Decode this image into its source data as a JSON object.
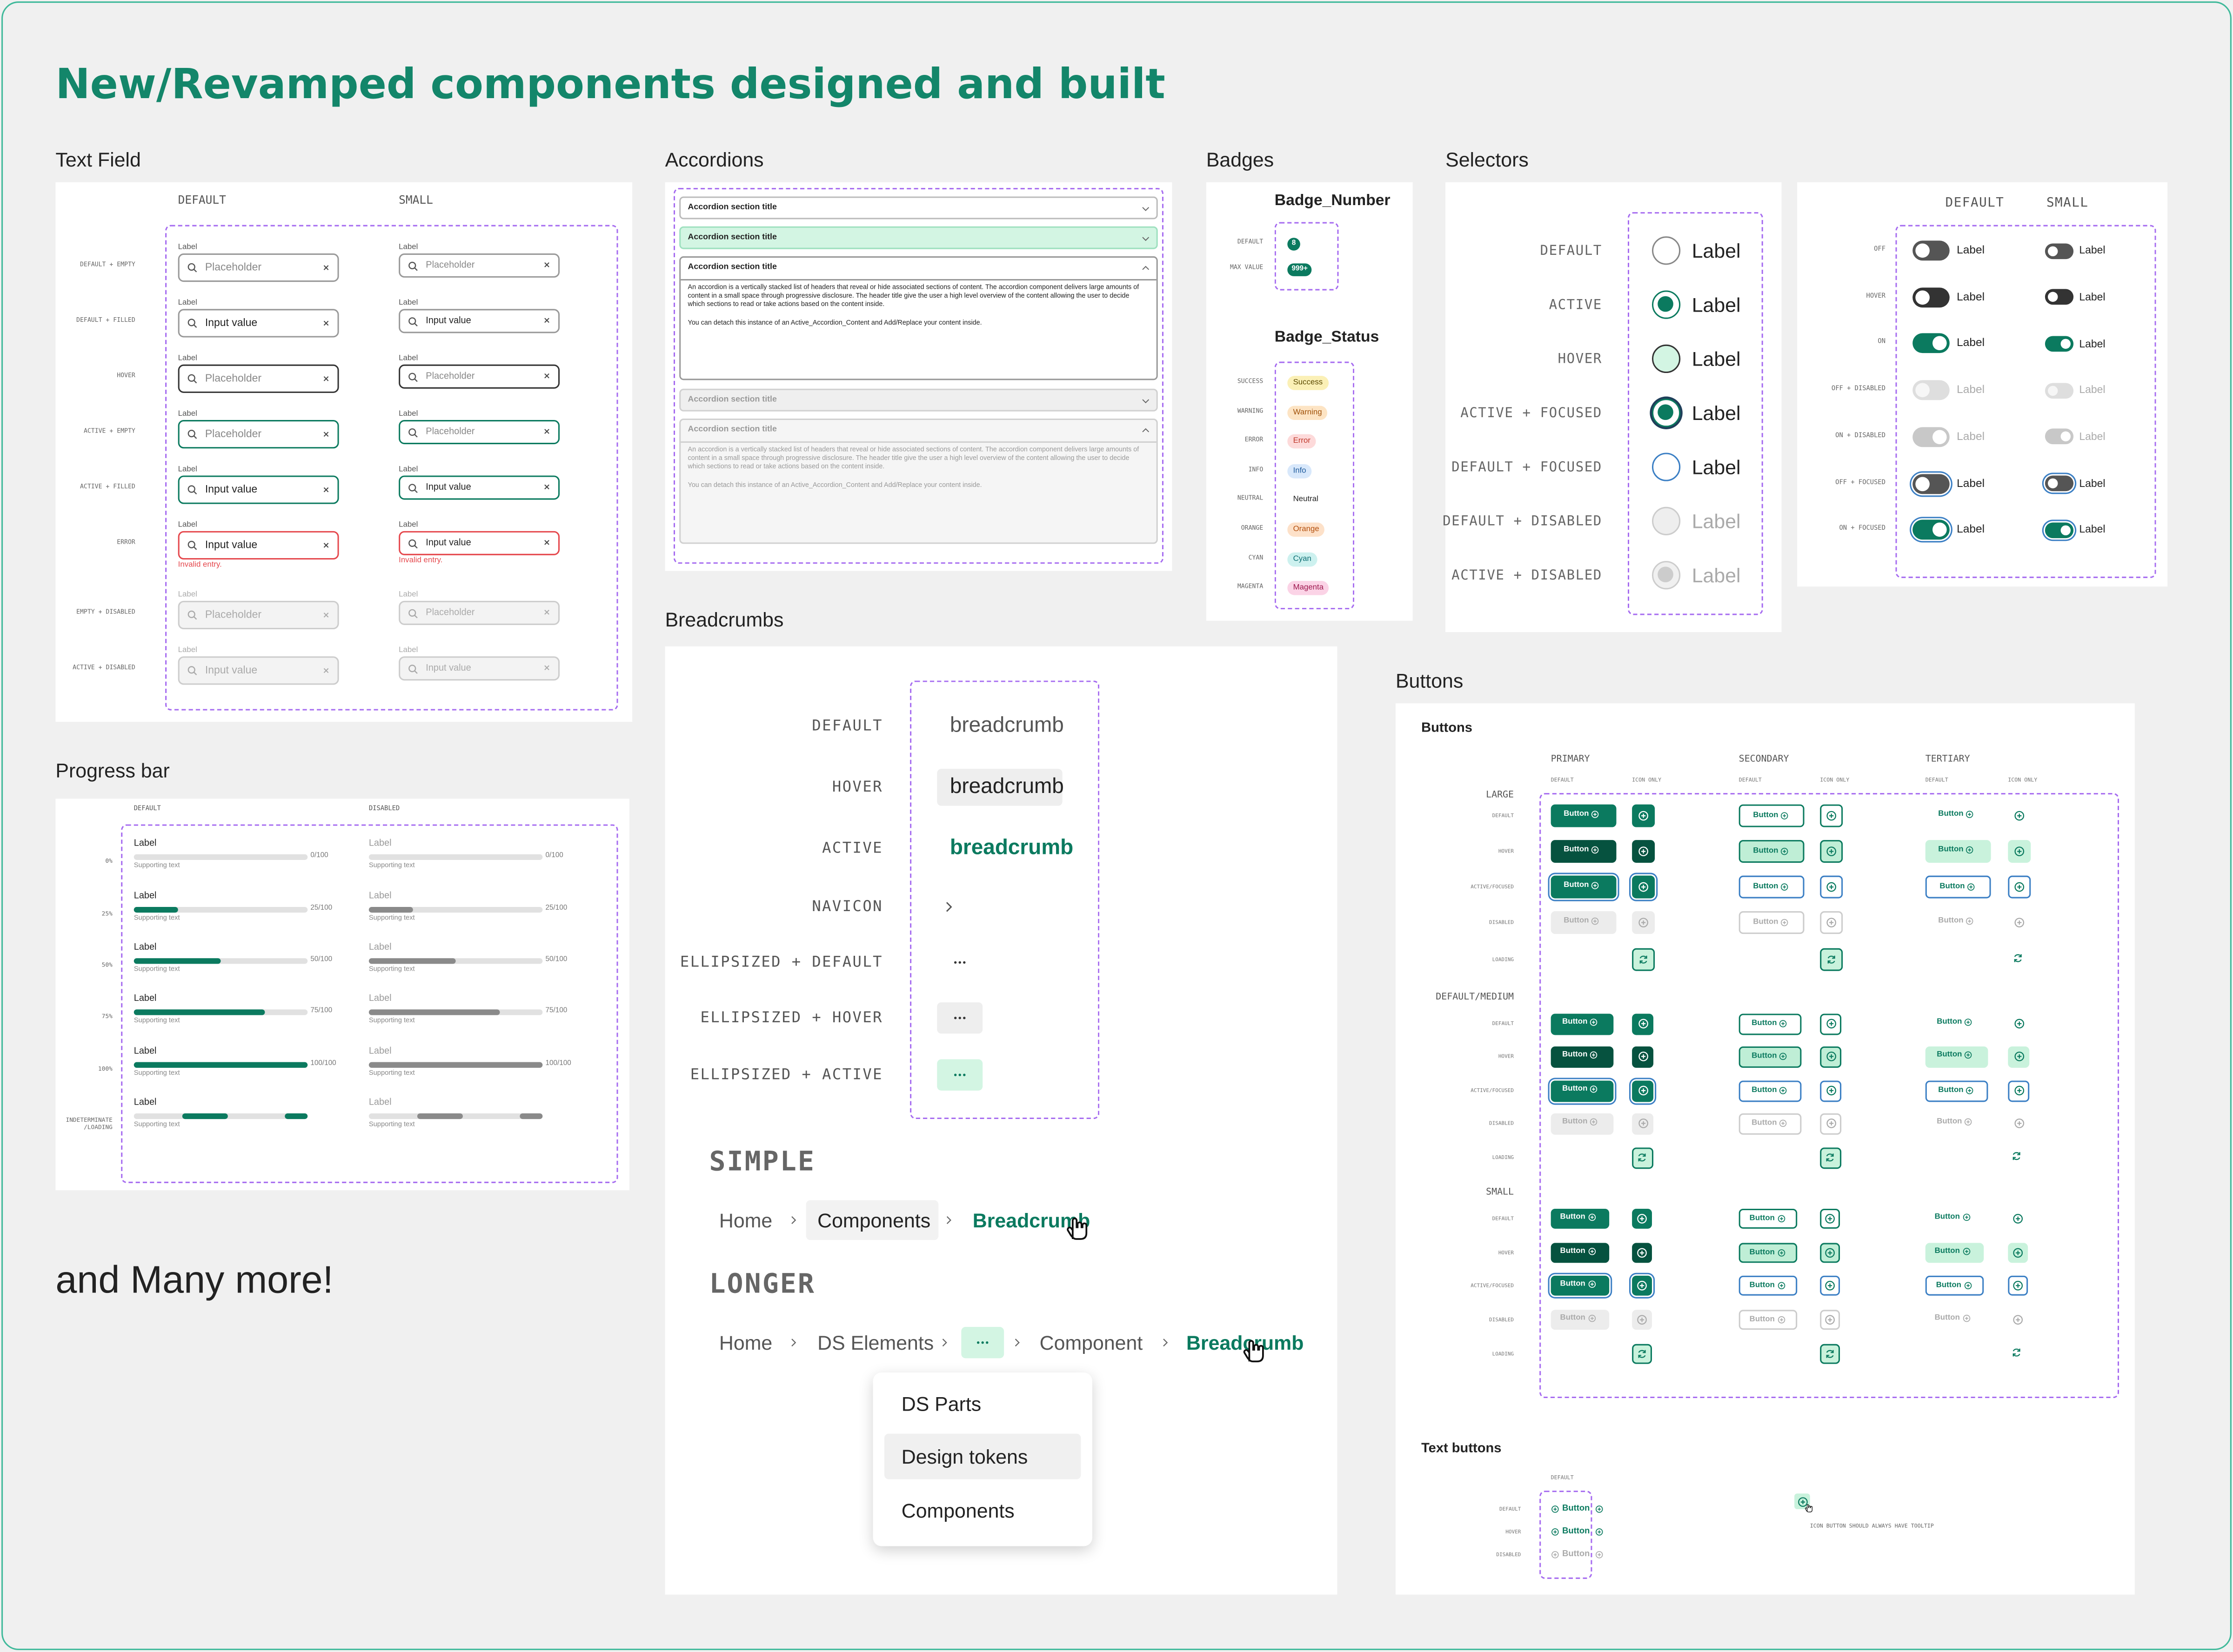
{
  "title": "New/Revamped components designed and built",
  "footer": "and Many more!",
  "text_field": {
    "heading": "Text Field",
    "columns": [
      "DEFAULT",
      "SMALL"
    ],
    "field_label": "Label",
    "error_message": "Invalid entry.",
    "rows": [
      {
        "state": "DEFAULT + EMPTY",
        "text": "Placeholder"
      },
      {
        "state": "DEFAULT + FILLED",
        "text": "Input value"
      },
      {
        "state": "HOVER",
        "text": "Placeholder"
      },
      {
        "state": "ACTIVE + EMPTY",
        "text": "Placeholder"
      },
      {
        "state": "ACTIVE + FILLED",
        "text": "Input value"
      },
      {
        "state": "ERROR",
        "text": "Input value"
      },
      {
        "state": "EMPTY + DISABLED",
        "text": "Placeholder"
      },
      {
        "state": "ACTIVE + DISABLED",
        "text": "Input value"
      }
    ]
  },
  "progress_bar": {
    "heading": "Progress bar",
    "columns": [
      "DEFAULT",
      "DISABLED"
    ],
    "bar_label": "Label",
    "supporting_text": "Supporting text",
    "rows": [
      {
        "state": "0%",
        "value": 0,
        "counter": "0/100"
      },
      {
        "state": "25%",
        "value": 25,
        "counter": "25/100"
      },
      {
        "state": "50%",
        "value": 50,
        "counter": "50/100"
      },
      {
        "state": "75%",
        "value": 75,
        "counter": "75/100"
      },
      {
        "state": "100%",
        "value": 100,
        "counter": "100/100"
      },
      {
        "state": "INDETERMINATE /LOADING"
      }
    ]
  },
  "accordions": {
    "heading": "Accordions",
    "section_title": "Accordion section title",
    "body": [
      "An accordion is a vertically stacked list of headers that reveal or hide associated sections of content. The accordion component delivers large amounts of content in a small space through progressive disclosure. The header title give the user a high level overview of the content allowing the user to decide which sections to read or take actions based on the content inside.",
      "You can detach this instance of an Active_Accordion_Content and Add/Replace your content inside."
    ]
  },
  "badges": {
    "heading": "Badges",
    "number": {
      "title": "Badge_Number",
      "rows": [
        {
          "state": "DEFAULT",
          "label": 8
        },
        {
          "state": "MAX VALUE",
          "label": "999+"
        }
      ]
    },
    "status": {
      "title": "Badge_Status",
      "rows": [
        {
          "state": "SUCCESS",
          "label": "Success"
        },
        {
          "state": "WARNING",
          "label": "Warning"
        },
        {
          "state": "ERROR",
          "label": "Error"
        },
        {
          "state": "INFO",
          "label": "Info"
        },
        {
          "state": "NEUTRAL",
          "label": "Neutral"
        },
        {
          "state": "ORANGE",
          "label": "Orange"
        },
        {
          "state": "CYAN",
          "label": "Cyan"
        },
        {
          "state": "MAGENTA",
          "label": "Magenta"
        }
      ]
    }
  },
  "selectors": {
    "heading": "Selectors",
    "radio": {
      "label": "Label",
      "states": [
        "DEFAULT",
        "ACTIVE",
        "HOVER",
        "ACTIVE + FOCUSED",
        "DEFAULT + FOCUSED",
        "DEFAULT + DISABLED",
        "ACTIVE + DISABLED"
      ]
    },
    "toggle": {
      "columns": [
        "DEFAULT",
        "SMALL"
      ],
      "label": "Label",
      "states": [
        "OFF",
        "HOVER",
        "ON",
        "OFF + DISABLED",
        "ON + DISABLED",
        "OFF + FOCUSED",
        "ON + FOCUSED"
      ]
    }
  },
  "breadcrumbs": {
    "heading": "Breadcrumbs",
    "states": [
      {
        "state": "DEFAULT",
        "text": "breadcrumb"
      },
      {
        "state": "HOVER",
        "text": "breadcrumb"
      },
      {
        "state": "ACTIVE",
        "text": "breadcrumb"
      },
      {
        "state": "NAVICON"
      },
      {
        "state": "ELLIPSIZED + DEFAULT"
      },
      {
        "state": "ELLIPSIZED + HOVER"
      },
      {
        "state": "ELLIPSIZED + ACTIVE"
      }
    ],
    "simple": {
      "title": "SIMPLE",
      "items": [
        "Home",
        "Components",
        "Breadcrumb"
      ]
    },
    "longer": {
      "title": "LONGER",
      "items": [
        "Home",
        "DS Elements",
        "Component",
        "Breadcrumb"
      ]
    },
    "menu": [
      "DS Parts",
      "Design tokens",
      "Components"
    ]
  },
  "buttons": {
    "heading": "Buttons",
    "title": "Buttons",
    "columns": [
      "PRIMARY",
      "SECONDARY",
      "TERTIARY"
    ],
    "subcolumns": [
      "DEFAULT",
      "ICON ONLY"
    ],
    "button_label": "Button",
    "sizes": [
      {
        "name": "LARGE",
        "states": [
          "DEFAULT",
          "HOVER",
          "ACTIVE/FOCUSED",
          "DISABLED",
          "LOADING"
        ]
      },
      {
        "name": "DEFAULT/MEDIUM",
        "states": [
          "DEFAULT",
          "HOVER",
          "ACTIVE/FOCUSED",
          "DISABLED",
          "LOADING"
        ]
      },
      {
        "name": "SMALL",
        "states": [
          "DEFAULT",
          "HOVER",
          "ACTIVE/FOCUSED",
          "DISABLED",
          "LOADING"
        ]
      }
    ],
    "text_buttons": {
      "title": "Text buttons",
      "column": "DEFAULT",
      "states": [
        "DEFAULT",
        "HOVER",
        "DISABLED"
      ],
      "note": "ICON BUTTON SHOULD ALWAYS HAVE TOOLTIP"
    }
  }
}
